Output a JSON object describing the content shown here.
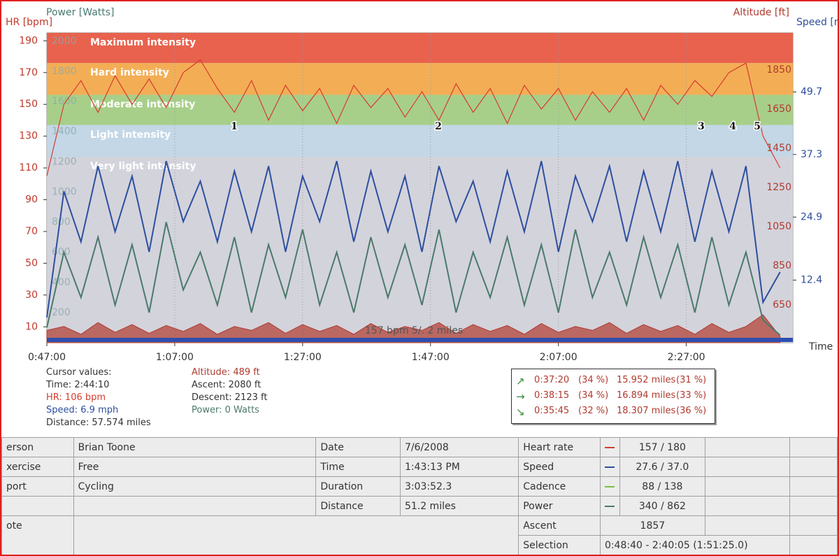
{
  "chart_data": {
    "type": "line",
    "axes": {
      "hr": {
        "label": "HR [bpm]",
        "color": "#c0392b",
        "lim": [
          0,
          195
        ],
        "ticks": [
          10,
          30,
          50,
          70,
          90,
          110,
          130,
          150,
          170,
          190
        ]
      },
      "power": {
        "label": "Power [Watts]",
        "color": "#4a7a72",
        "lim": [
          0,
          2055
        ],
        "ticks": [
          200,
          400,
          600,
          800,
          1000,
          1200,
          1400,
          1600,
          1800,
          2000
        ]
      },
      "altitude": {
        "label": "Altitude [ft]",
        "color": "#b03a2e",
        "lim": [
          457,
          2039
        ],
        "ticks": [
          650,
          850,
          1050,
          1250,
          1450,
          1650,
          1850
        ]
      },
      "speed": {
        "label": "Speed [m",
        "color": "#2d4f9e",
        "lim": [
          0,
          61.4
        ],
        "ticks": [
          12.4,
          24.9,
          37.3,
          49.7
        ]
      }
    },
    "x_label": "Time",
    "xlim": [
      2820,
      9820
    ],
    "xticks": [
      {
        "value": 2820,
        "label": "0:47:00"
      },
      {
        "value": 4020,
        "label": "1:07:00"
      },
      {
        "value": 5220,
        "label": "1:27:00"
      },
      {
        "value": 6420,
        "label": "1:47:00"
      },
      {
        "value": 7620,
        "label": "2:07:00"
      },
      {
        "value": 8820,
        "label": "2:27:00"
      }
    ],
    "grid": true,
    "zones": [
      {
        "name": "Maximum intensity",
        "from": 176,
        "to": 195,
        "color": "#e8624e"
      },
      {
        "name": "Hard intensity",
        "from": 156,
        "to": 176,
        "color": "#f3ae55"
      },
      {
        "name": "Moderate intensity",
        "from": 137,
        "to": 156,
        "color": "#a8cf8a"
      },
      {
        "name": "Light intensity",
        "from": 117,
        "to": 137,
        "color": "#c3d7e6"
      },
      {
        "name": "Very light intensity",
        "from": 0,
        "to": 117,
        "color": "#d3d3dc"
      }
    ],
    "x": [
      2820,
      2980,
      3140,
      3300,
      3460,
      3620,
      3780,
      3940,
      4100,
      4260,
      4420,
      4580,
      4740,
      4900,
      5060,
      5220,
      5380,
      5540,
      5700,
      5860,
      6020,
      6180,
      6340,
      6500,
      6660,
      6820,
      6980,
      7140,
      7300,
      7460,
      7620,
      7780,
      7940,
      8100,
      8260,
      8420,
      8580,
      8740,
      8900,
      9060,
      9220,
      9380,
      9540,
      9700
    ],
    "series": [
      {
        "name": "Altitude",
        "axis": "altitude",
        "color": "#b03a2e",
        "values": [
          520,
          540,
          500,
          560,
          510,
          550,
          505,
          545,
          515,
          555,
          500,
          540,
          520,
          560,
          505,
          550,
          515,
          545,
          500,
          555,
          510,
          540,
          520,
          560,
          505,
          550,
          515,
          545,
          500,
          555,
          510,
          540,
          520,
          560,
          505,
          550,
          515,
          545,
          500,
          555,
          510,
          540,
          600,
          489
        ]
      },
      {
        "name": "Power",
        "axis": "power",
        "color": "#4a7a6a",
        "values": [
          100,
          600,
          300,
          700,
          250,
          650,
          200,
          800,
          350,
          600,
          250,
          700,
          200,
          650,
          300,
          750,
          250,
          600,
          200,
          700,
          300,
          650,
          250,
          750,
          200,
          600,
          300,
          700,
          250,
          650,
          200,
          750,
          300,
          600,
          250,
          700,
          300,
          650,
          200,
          700,
          250,
          600,
          150,
          50
        ]
      },
      {
        "name": "Speed",
        "axis": "speed",
        "color": "#2d4f9e",
        "values": [
          5,
          30,
          20,
          35,
          22,
          33,
          18,
          36,
          24,
          32,
          20,
          34,
          22,
          35,
          18,
          33,
          24,
          36,
          20,
          34,
          22,
          33,
          18,
          35,
          24,
          32,
          20,
          34,
          22,
          36,
          18,
          33,
          24,
          35,
          20,
          34,
          22,
          36,
          20,
          34,
          22,
          35,
          8,
          14
        ]
      },
      {
        "name": "Heart rate",
        "axis": "hr",
        "color": "#d63b2f",
        "values": [
          105,
          150,
          165,
          145,
          168,
          150,
          166,
          148,
          170,
          178,
          160,
          145,
          165,
          140,
          162,
          146,
          160,
          138,
          162,
          148,
          160,
          142,
          158,
          140,
          163,
          145,
          160,
          138,
          162,
          147,
          160,
          140,
          158,
          145,
          160,
          140,
          162,
          150,
          165,
          155,
          170,
          176,
          130,
          110
        ]
      }
    ],
    "annotations": [
      {
        "text": "1",
        "x": 4578,
        "y": 136
      },
      {
        "text": "2",
        "x": 6494,
        "y": 136
      },
      {
        "text": "3",
        "x": 8960,
        "y": 136
      },
      {
        "text": "4",
        "x": 9256,
        "y": 136
      },
      {
        "text": "5",
        "x": 9486,
        "y": 136
      }
    ],
    "footer_label": "157 bpm 5/. 2 miles"
  },
  "cursor_values": {
    "title": "Cursor values:",
    "left": [
      {
        "text": "Time: 2:44:10",
        "color": "#333333"
      },
      {
        "text": "HR: 106 bpm",
        "color": "#d63b2f"
      },
      {
        "text": "Speed: 6.9 mph",
        "color": "#2d4f9e"
      },
      {
        "text": "Distance: 57.574 miles",
        "color": "#333333"
      }
    ],
    "right": [
      {
        "text": "Altitude: 489 ft",
        "color": "#b03a2e"
      },
      {
        "text": "Ascent: 2080 ft",
        "color": "#333333"
      },
      {
        "text": "Descent: 2123 ft",
        "color": "#333333"
      },
      {
        "text": "Power: 0 Watts",
        "color": "#4a7a6a"
      }
    ]
  },
  "summary_box": {
    "rows": [
      [
        "↗",
        "0:37:20",
        "(34 %)",
        "15.952 miles",
        "(31 %)"
      ],
      [
        "→",
        "0:38:15",
        "(34 %)",
        "16.894 miles",
        "(33 %)"
      ],
      [
        "↘",
        "0:35:45",
        "(32 %)",
        "18.307 miles",
        "(36 %)"
      ]
    ]
  },
  "table": {
    "rows": [
      [
        "erson",
        "Brian Toone",
        "Date",
        "7/6/2008",
        "Heart rate",
        "157 / 180"
      ],
      [
        "xercise",
        "Free",
        "Time",
        "1:43:13 PM",
        "Speed",
        "27.6 / 37.0"
      ],
      [
        "port",
        "Cycling",
        "Duration",
        "3:03:52.3",
        "Cadence",
        "88 / 138"
      ],
      [
        "",
        "",
        "Distance",
        "51.2 miles",
        "Power",
        "340 / 862"
      ],
      [
        "ote",
        "",
        "",
        "",
        "Ascent",
        "1857"
      ],
      [
        "",
        "",
        "",
        "",
        "Selection",
        "0:48:40 - 2:40:05 (1:51:25.0)"
      ]
    ],
    "swatches": [
      "#d63b2f",
      "#2d4f9e",
      "#7ac142",
      "#4a7a6a"
    ]
  }
}
